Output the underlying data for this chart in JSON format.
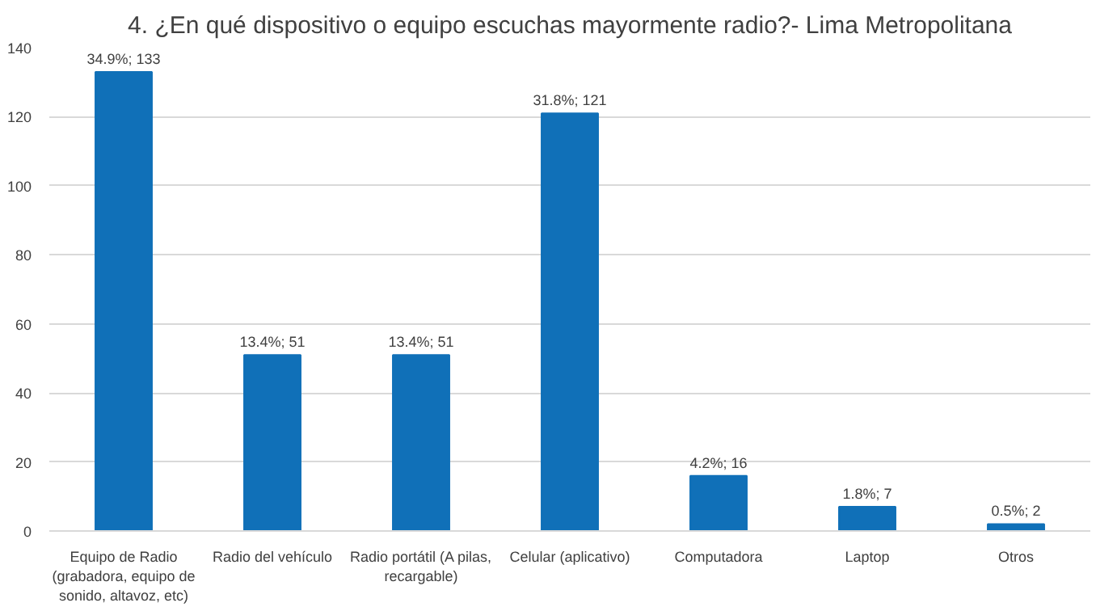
{
  "chart_data": {
    "type": "bar",
    "title": "4. ¿En qué dispositivo o equipo escuchas mayormente radio?- Lima Metropolitana",
    "categories": [
      "Equipo de Radio (grabadora, equipo de sonido, altavoz, etc)",
      "Radio del vehículo",
      "Radio portátil (A pilas, recargable)",
      "Celular (aplicativo)",
      "Computadora",
      "Laptop",
      "Otros"
    ],
    "values": [
      133,
      51,
      51,
      121,
      16,
      7,
      2
    ],
    "value_labels": [
      "34.9%; 133",
      "13.4%; 51",
      "13.4%; 51",
      "31.8%; 121",
      "4.2%; 16",
      "1.8%; 7",
      "0.5%; 2"
    ],
    "color": "#1070b8",
    "ylim": [
      0,
      140
    ],
    "yticks": [
      0,
      20,
      40,
      60,
      80,
      100,
      120,
      140
    ],
    "grid": "y"
  }
}
